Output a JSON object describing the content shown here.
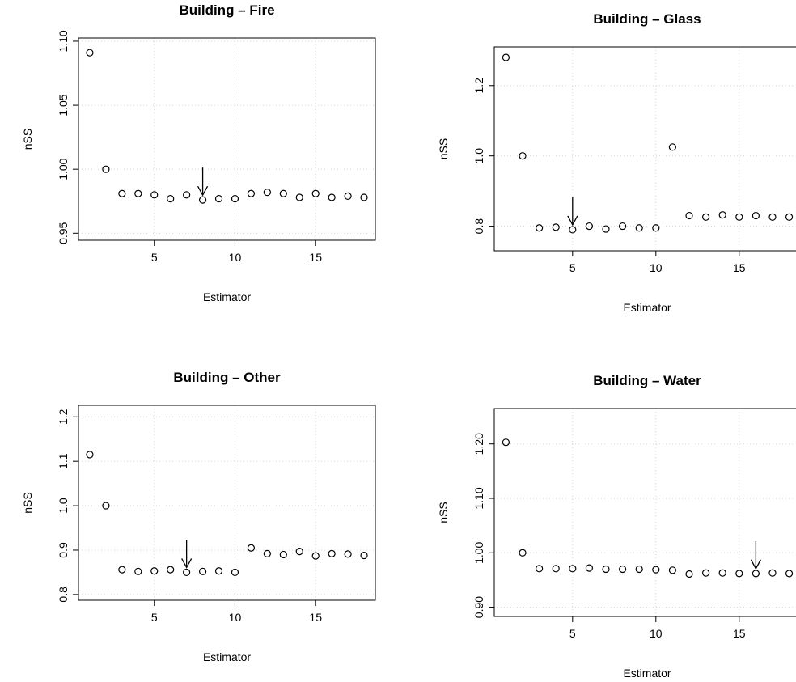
{
  "chart_data": [
    {
      "type": "scatter",
      "title": "Building – Fire",
      "xlabel": "Estimator",
      "ylabel": "nSS",
      "xlim": [
        0.3,
        18.7
      ],
      "ylim": [
        0.9445,
        1.1025
      ],
      "xticks": [
        5,
        10,
        15
      ],
      "yticks": [
        0.95,
        1.0,
        1.05,
        1.1
      ],
      "ytick_labels": [
        "0.95",
        "1.00",
        "1.05",
        "1.10"
      ],
      "grid": true,
      "x": [
        1,
        2,
        3,
        4,
        5,
        6,
        7,
        8,
        9,
        10,
        11,
        12,
        13,
        14,
        15,
        16,
        17,
        18
      ],
      "y": [
        1.091,
        1.0,
        0.981,
        0.981,
        0.98,
        0.977,
        0.98,
        0.976,
        0.977,
        0.977,
        0.981,
        0.982,
        0.981,
        0.978,
        0.981,
        0.978,
        0.979,
        0.978
      ],
      "arrow_at": 8
    },
    {
      "type": "scatter",
      "title": "Building – Glass",
      "xlabel": "Estimator",
      "ylabel": "nSS",
      "xlim": [
        0.3,
        18.7
      ],
      "ylim": [
        0.73,
        1.31
      ],
      "xticks": [
        5,
        10,
        15
      ],
      "yticks": [
        0.8,
        1.0,
        1.2
      ],
      "ytick_labels": [
        "0.8",
        "1.0",
        "1.2"
      ],
      "grid": true,
      "x": [
        1,
        2,
        3,
        4,
        5,
        6,
        7,
        8,
        9,
        10,
        11,
        12,
        13,
        14,
        15,
        16,
        17,
        18
      ],
      "y": [
        1.28,
        1.0,
        0.795,
        0.797,
        0.79,
        0.8,
        0.792,
        0.8,
        0.795,
        0.795,
        1.025,
        0.83,
        0.826,
        0.832,
        0.826,
        0.83,
        0.826,
        0.826
      ],
      "arrow_at": 5
    },
    {
      "type": "scatter",
      "title": "Building – Other",
      "xlabel": "Estimator",
      "ylabel": "nSS",
      "xlim": [
        0.3,
        18.7
      ],
      "ylim": [
        0.787,
        1.226
      ],
      "xticks": [
        5,
        10,
        15
      ],
      "yticks": [
        0.8,
        0.9,
        1.0,
        1.1,
        1.2
      ],
      "ytick_labels": [
        "0.8",
        "0.9",
        "1.0",
        "1.1",
        "1.2"
      ],
      "grid": true,
      "x": [
        1,
        2,
        3,
        4,
        5,
        6,
        7,
        8,
        9,
        10,
        11,
        12,
        13,
        14,
        15,
        16,
        17,
        18
      ],
      "y": [
        1.115,
        1.0,
        0.856,
        0.852,
        0.853,
        0.856,
        0.85,
        0.852,
        0.853,
        0.85,
        0.905,
        0.892,
        0.89,
        0.897,
        0.887,
        0.892,
        0.891,
        0.888
      ],
      "arrow_at": 7
    },
    {
      "type": "scatter",
      "title": "Building – Water",
      "xlabel": "Estimator",
      "ylabel": "nSS",
      "xlim": [
        0.3,
        18.7
      ],
      "ylim": [
        0.883,
        1.265
      ],
      "xticks": [
        5,
        10,
        15
      ],
      "yticks": [
        0.9,
        1.0,
        1.1,
        1.2
      ],
      "ytick_labels": [
        "0.90",
        "1.00",
        "1.10",
        "1.20"
      ],
      "grid": true,
      "x": [
        1,
        2,
        3,
        4,
        5,
        6,
        7,
        8,
        9,
        10,
        11,
        12,
        13,
        14,
        15,
        16,
        17,
        18
      ],
      "y": [
        1.203,
        1.0,
        0.971,
        0.971,
        0.971,
        0.972,
        0.97,
        0.97,
        0.97,
        0.969,
        0.968,
        0.961,
        0.963,
        0.963,
        0.962,
        0.962,
        0.963,
        0.962
      ],
      "arrow_at": 16
    }
  ]
}
